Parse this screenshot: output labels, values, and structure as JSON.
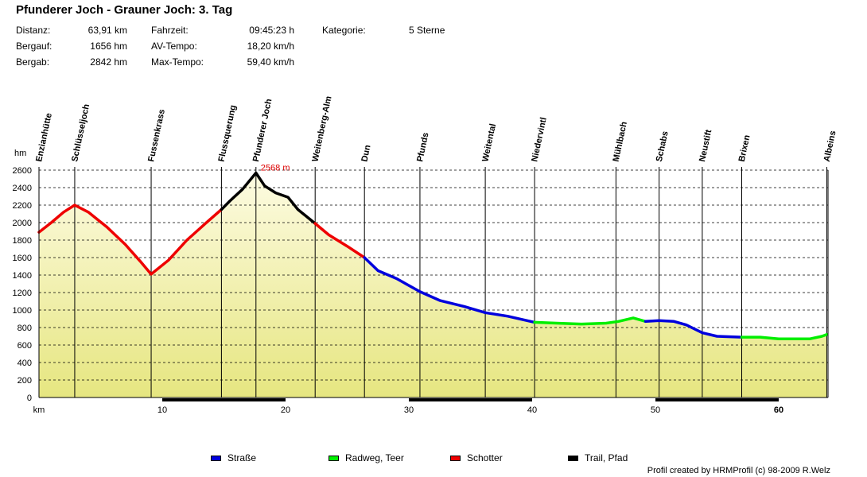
{
  "title": "Pfunderer Joch - Grauner Joch: 3. Tag",
  "stats": {
    "distanz_label": "Distanz:",
    "distanz_value": "63,91 km",
    "bergauf_label": "Bergauf:",
    "bergauf_value": "1656 hm",
    "bergab_label": "Bergab:",
    "bergab_value": "2842 hm",
    "fahrzeit_label": "Fahrzeit:",
    "fahrzeit_value": "09:45:23 h",
    "avtempo_label": "AV-Tempo:",
    "avtempo_value": "18,20 km/h",
    "maxtempo_label": "Max-Tempo:",
    "maxtempo_value": "59,40 km/h",
    "kategorie_label": "Kategorie:",
    "kategorie_value": "5 Sterne"
  },
  "footer": "Profil created by HRMProfil (c) 98-2009 R.Welz",
  "colors": {
    "strasse": "#0000dd",
    "radweg": "#00ee00",
    "schotter": "#ee0000",
    "trail": "#000000",
    "fill_top": "#fdfbe2",
    "fill_bottom": "#e6e680"
  },
  "chart_data": {
    "type": "area",
    "xlabel": "km",
    "ylabel": "hm",
    "xlim": [
      0,
      64
    ],
    "ylim": [
      0,
      2600
    ],
    "x_ticks": [
      10,
      20,
      30,
      40,
      50,
      60
    ],
    "y_ticks": [
      0,
      200,
      400,
      600,
      800,
      1000,
      1200,
      1400,
      1600,
      1800,
      2000,
      2200,
      2400,
      2600
    ],
    "grid": true,
    "peak_annotation": {
      "x": 17.6,
      "y": 2568,
      "label": "2568 m"
    },
    "waypoints": [
      {
        "name": "Enzianhütte",
        "km": 0.0
      },
      {
        "name": "Schlüsseljoch",
        "km": 2.9
      },
      {
        "name": "Fussenkrass",
        "km": 9.1
      },
      {
        "name": "Flussquerung",
        "km": 14.8
      },
      {
        "name": "Pfunderer Joch",
        "km": 17.6
      },
      {
        "name": "Weitenberg-Alm",
        "km": 22.4
      },
      {
        "name": "Dun",
        "km": 26.4
      },
      {
        "name": "Pfunds",
        "km": 30.9
      },
      {
        "name": "Weitental",
        "km": 36.2
      },
      {
        "name": "Niedervintl",
        "km": 40.2
      },
      {
        "name": "Mühlbach",
        "km": 46.8
      },
      {
        "name": "Schabs",
        "km": 50.3
      },
      {
        "name": "Neustift",
        "km": 53.8
      },
      {
        "name": "Brixen",
        "km": 57.0
      },
      {
        "name": "Albeins",
        "km": 63.9
      }
    ],
    "series": [
      {
        "name": "Schotter",
        "color": "#ee0000",
        "x": [
          0,
          1,
          2,
          2.9,
          4,
          5.5,
          7,
          8.2,
          9.1,
          10.5,
          12,
          13.5,
          14.8
        ],
        "y": [
          1890,
          2000,
          2120,
          2200,
          2120,
          1950,
          1750,
          1560,
          1410,
          1570,
          1800,
          1990,
          2150
        ]
      },
      {
        "name": "Trail, Pfad",
        "color": "#000000",
        "x": [
          14.8,
          15.5,
          16.5,
          17.6,
          18.3,
          19.2,
          20.2,
          21,
          22.4
        ],
        "y": [
          2150,
          2250,
          2380,
          2568,
          2420,
          2340,
          2290,
          2150,
          1990
        ]
      },
      {
        "name": "Schotter",
        "color": "#ee0000",
        "x": [
          22.4,
          23.5,
          25,
          26.4
        ],
        "y": [
          1990,
          1860,
          1730,
          1600
        ]
      },
      {
        "name": "Straße",
        "color": "#0000dd",
        "x": [
          26.4,
          27.5,
          29,
          30.9,
          32.5,
          34.5,
          36.2,
          38,
          40.2
        ],
        "y": [
          1600,
          1450,
          1360,
          1210,
          1110,
          1040,
          970,
          930,
          860
        ]
      },
      {
        "name": "Radweg, Teer",
        "color": "#00ee00",
        "x": [
          40.2,
          42,
          44,
          46,
          47,
          48.2,
          49.2
        ],
        "y": [
          860,
          850,
          840,
          850,
          870,
          910,
          870
        ]
      },
      {
        "name": "Straße",
        "color": "#0000dd",
        "x": [
          49.2,
          50.3,
          51.5,
          52.5,
          53.8,
          55,
          57
        ],
        "y": [
          870,
          880,
          870,
          830,
          740,
          700,
          690
        ]
      },
      {
        "name": "Radweg, Teer",
        "color": "#00ee00",
        "x": [
          57,
          58.5,
          60,
          61.5,
          62.5,
          63.5,
          63.9
        ],
        "y": [
          690,
          690,
          670,
          670,
          670,
          700,
          720
        ]
      }
    ],
    "legend": [
      {
        "label": "Straße",
        "color": "#0000dd"
      },
      {
        "label": "Radweg, Teer",
        "color": "#00ee00"
      },
      {
        "label": "Schotter",
        "color": "#ee0000"
      },
      {
        "label": "Trail, Pfad",
        "color": "#000000"
      }
    ]
  }
}
